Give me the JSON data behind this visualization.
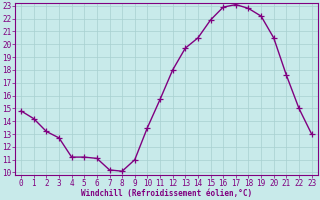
{
  "x": [
    0,
    1,
    2,
    3,
    4,
    5,
    6,
    7,
    8,
    9,
    10,
    11,
    12,
    13,
    14,
    15,
    16,
    17,
    18,
    19,
    20,
    21,
    22,
    23
  ],
  "y": [
    14.8,
    14.2,
    13.2,
    12.7,
    11.2,
    11.2,
    11.1,
    10.2,
    10.1,
    11.0,
    13.5,
    15.7,
    18.0,
    19.7,
    20.5,
    21.9,
    22.9,
    23.1,
    22.8,
    22.2,
    20.5,
    17.6,
    15.0,
    13.0
  ],
  "line_color": "#800080",
  "marker": "+",
  "marker_size": 4,
  "linewidth": 1.0,
  "bg_color": "#c8eaea",
  "grid_color": "#a8d0d0",
  "xlabel": "Windchill (Refroidissement éolien,°C)",
  "xlabel_color": "#800080",
  "tick_color": "#800080",
  "spine_color": "#800080",
  "ylim": [
    10,
    23
  ],
  "xlim": [
    -0.5,
    23.5
  ],
  "yticks": [
    10,
    11,
    12,
    13,
    14,
    15,
    16,
    17,
    18,
    19,
    20,
    21,
    22,
    23
  ],
  "xticks": [
    0,
    1,
    2,
    3,
    4,
    5,
    6,
    7,
    8,
    9,
    10,
    11,
    12,
    13,
    14,
    15,
    16,
    17,
    18,
    19,
    20,
    21,
    22,
    23
  ],
  "tick_fontsize": 5.5,
  "xlabel_fontsize": 5.5
}
